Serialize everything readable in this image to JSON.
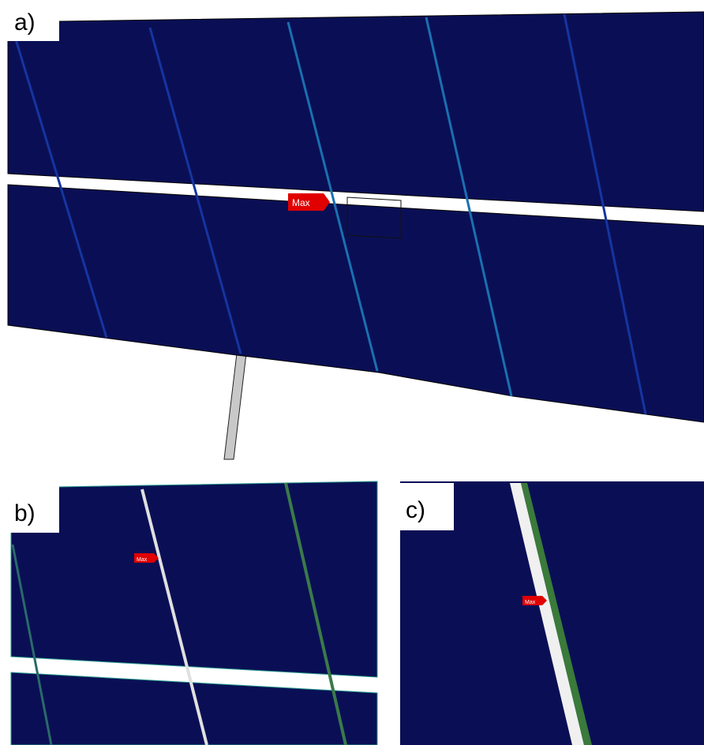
{
  "panels": [
    {
      "label": "a)",
      "marker": "Max"
    },
    {
      "label": "b)",
      "marker": "Max"
    },
    {
      "label": "c)",
      "marker": "Max"
    }
  ]
}
